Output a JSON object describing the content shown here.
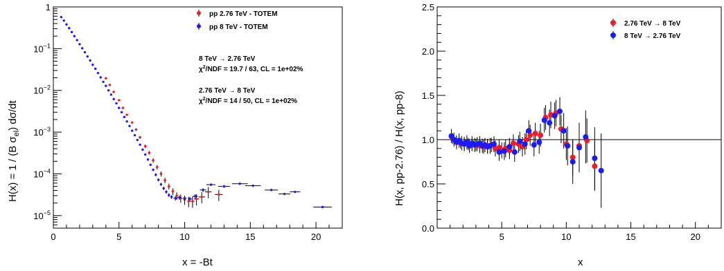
{
  "chart_data": [
    {
      "type": "scatter",
      "xlabel": "x = -Bt",
      "ylabel": "H(x) = 1 / (B σ",
      "ylabel_sub": "el",
      "ylabel_end": ")  dσ/dt",
      "xlim": [
        0,
        22
      ],
      "ylim": [
        5e-06,
        1
      ],
      "log_y": true,
      "x_ticks": [
        "0",
        "5",
        "10",
        "15",
        "20"
      ],
      "y_tick_mantissa": "10",
      "y_ticks": [
        {
          "value": 1,
          "label": "1",
          "exp": ""
        },
        {
          "value": 0.1,
          "label": "10",
          "exp": "−1"
        },
        {
          "value": 0.01,
          "label": "10",
          "exp": "−2"
        },
        {
          "value": 0.001,
          "label": "10",
          "exp": "−3"
        },
        {
          "value": 0.0001,
          "label": "10",
          "exp": "−4"
        },
        {
          "value": 1e-05,
          "label": "10",
          "exp": "−5"
        }
      ],
      "legend": [
        {
          "label": "pp 2.76 TeV - TOTEM",
          "color": "#e8202a"
        },
        {
          "label": "pp 8 TeV - TOTEM",
          "color": "#1c1cf0"
        }
      ],
      "annotations": {
        "a1_title": "8 TeV → 2.76 TeV",
        "a1_chi_pre": "χ",
        "a1_chi_sup": "2",
        "a1_chi_post": "/NDF = 19.7 / 63,  CL = 1e+02%",
        "a2_title": "2.76 TeV → 8 TeV",
        "a2_chi_pre": "χ",
        "a2_chi_sup": "2",
        "a2_chi_post": "/NDF =  14 / 50,  CL = 1e+02%"
      },
      "series": [
        {
          "name": "pp 2.76 TeV - TOTEM",
          "color": "#e8202a",
          "x": [
            4.0,
            4.3,
            4.6,
            5.0,
            5.3,
            5.6,
            6.0,
            6.3,
            6.6,
            7.0,
            7.3,
            7.6,
            7.9,
            8.2,
            8.5,
            8.8,
            9.1,
            9.4,
            9.7,
            10.0,
            10.3,
            10.6,
            10.9,
            11.3,
            11.8,
            12.6
          ],
          "y": [
            0.0195,
            0.0135,
            0.0092,
            0.0058,
            0.0038,
            0.0026,
            0.0017,
            0.00115,
            0.00075,
            0.00046,
            0.00032,
            0.00021,
            0.000145,
            0.0001,
            7e-05,
            5e-05,
            3.8e-05,
            3e-05,
            2.6e-05,
            2.4e-05,
            2.2e-05,
            2.2e-05,
            2.5e-05,
            2.8e-05,
            3.7e-05,
            3.2e-05
          ],
          "xerr": [
            0.1,
            0.1,
            0.1,
            0.1,
            0.1,
            0.1,
            0.1,
            0.1,
            0.1,
            0.1,
            0.1,
            0.1,
            0.1,
            0.1,
            0.1,
            0.1,
            0.1,
            0.1,
            0.1,
            0.1,
            0.1,
            0.15,
            0.2,
            0.25,
            0.25,
            0.3
          ],
          "yerr_frac": [
            0.04,
            0.04,
            0.05,
            0.05,
            0.05,
            0.06,
            0.06,
            0.07,
            0.08,
            0.1,
            0.1,
            0.12,
            0.12,
            0.14,
            0.15,
            0.16,
            0.18,
            0.2,
            0.22,
            0.25,
            0.28,
            0.3,
            0.3,
            0.3,
            0.3,
            0.3
          ]
        },
        {
          "name": "pp 8 TeV - TOTEM",
          "color": "#1c1cf0",
          "x": [
            0.6,
            0.8,
            1.0,
            1.2,
            1.4,
            1.6,
            1.8,
            2.0,
            2.2,
            2.4,
            2.6,
            2.8,
            3.0,
            3.2,
            3.4,
            3.6,
            3.8,
            4.0,
            4.2,
            4.4,
            4.6,
            4.8,
            5.0,
            5.2,
            5.4,
            5.6,
            5.8,
            6.0,
            6.2,
            6.4,
            6.6,
            6.8,
            7.0,
            7.2,
            7.4,
            7.6,
            7.8,
            8.0,
            8.2,
            8.4,
            8.6,
            8.8,
            9.0,
            9.3,
            9.6,
            10.0,
            10.4,
            10.8,
            11.4,
            12.0,
            13.0,
            14.2,
            15.2,
            16.6,
            17.6,
            18.4,
            20.5
          ],
          "y": [
            0.57,
            0.47,
            0.38,
            0.31,
            0.25,
            0.2,
            0.16,
            0.128,
            0.102,
            0.082,
            0.065,
            0.052,
            0.041,
            0.033,
            0.026,
            0.0205,
            0.016,
            0.0128,
            0.01,
            0.0079,
            0.0062,
            0.0049,
            0.0038,
            0.003,
            0.0023,
            0.0018,
            0.0014,
            0.00108,
            0.00084,
            0.00065,
            0.0005,
            0.00038,
            0.00029,
            0.00022,
            0.000165,
            0.000125,
            9.5e-05,
            7.2e-05,
            5.6e-05,
            4.5e-05,
            3.7e-05,
            3.1e-05,
            2.8e-05,
            2.6e-05,
            2.7e-05,
            2.6e-05,
            2.5e-05,
            2.9e-05,
            4.1e-05,
            5.5e-05,
            5e-05,
            5.8e-05,
            5.2e-05,
            4.1e-05,
            3.3e-05,
            3.7e-05,
            1.6e-05
          ],
          "xerr": [
            0.08,
            0.08,
            0.08,
            0.08,
            0.08,
            0.08,
            0.08,
            0.08,
            0.08,
            0.08,
            0.08,
            0.08,
            0.08,
            0.08,
            0.08,
            0.08,
            0.08,
            0.08,
            0.08,
            0.08,
            0.08,
            0.08,
            0.08,
            0.08,
            0.08,
            0.08,
            0.08,
            0.08,
            0.08,
            0.08,
            0.08,
            0.08,
            0.08,
            0.08,
            0.08,
            0.08,
            0.08,
            0.08,
            0.08,
            0.08,
            0.08,
            0.08,
            0.1,
            0.15,
            0.15,
            0.15,
            0.15,
            0.2,
            0.25,
            0.35,
            0.45,
            0.6,
            0.6,
            0.5,
            0.45,
            0.4,
            0.7
          ],
          "yerr_frac": [
            0.01,
            0.01,
            0.01,
            0.01,
            0.01,
            0.01,
            0.01,
            0.01,
            0.01,
            0.01,
            0.01,
            0.01,
            0.01,
            0.01,
            0.01,
            0.01,
            0.02,
            0.02,
            0.02,
            0.02,
            0.02,
            0.02,
            0.02,
            0.02,
            0.03,
            0.03,
            0.03,
            0.03,
            0.04,
            0.04,
            0.04,
            0.05,
            0.05,
            0.06,
            0.06,
            0.07,
            0.08,
            0.08,
            0.08,
            0.09,
            0.1,
            0.1,
            0.1,
            0.12,
            0.12,
            0.12,
            0.12,
            0.12,
            0.1,
            0.06,
            0.06,
            0.06,
            0.06,
            0.06,
            0.06,
            0.06,
            0.06
          ]
        }
      ]
    },
    {
      "type": "scatter",
      "xlabel": "x",
      "ylabel": "H(x, pp-2.76)  /  H(x, pp-8)",
      "xlim": [
        0,
        22
      ],
      "ylim": [
        0,
        2.5
      ],
      "x_ticks": [
        "5",
        "10",
        "15",
        "20"
      ],
      "y_ticks": [
        "0.0",
        "0.5",
        "1.0",
        "1.5",
        "2.0",
        "2.5"
      ],
      "reference_line": 1.0,
      "legend": [
        {
          "label": "2.76 TeV → 8 TeV",
          "color": "#e8202a"
        },
        {
          "label": "8 TeV → 2.76 TeV",
          "color": "#1c1cf0"
        }
      ],
      "series": [
        {
          "name": "2.76 TeV → 8 TeV",
          "color": "#e8202a",
          "x": [
            1.2,
            1.5,
            1.8,
            2.1,
            2.4,
            2.7,
            3.0,
            3.3,
            3.6,
            3.9,
            4.2,
            4.5,
            4.8,
            5.0,
            5.3,
            5.6,
            5.9,
            6.3,
            6.6,
            6.9,
            7.2,
            7.6,
            8.0,
            8.4,
            8.8,
            9.2,
            9.6,
            10.0,
            10.5,
            11.0,
            11.6,
            12.2
          ],
          "y": [
            1.01,
            0.98,
            0.96,
            0.95,
            0.95,
            0.94,
            0.94,
            0.93,
            0.92,
            0.93,
            0.94,
            0.9,
            0.91,
            0.88,
            0.9,
            0.88,
            0.96,
            0.95,
            0.92,
            1.0,
            1.05,
            1.07,
            1.05,
            1.25,
            1.28,
            1.3,
            1.12,
            0.95,
            0.8,
            0.93,
            0.99,
            0.7
          ],
          "yerr": [
            0.06,
            0.06,
            0.06,
            0.07,
            0.07,
            0.07,
            0.07,
            0.08,
            0.08,
            0.08,
            0.08,
            0.09,
            0.09,
            0.09,
            0.1,
            0.1,
            0.1,
            0.1,
            0.11,
            0.11,
            0.12,
            0.12,
            0.13,
            0.14,
            0.15,
            0.15,
            0.16,
            0.18,
            0.2,
            0.22,
            0.25,
            0.28
          ]
        },
        {
          "name": "8 TeV → 2.76 TeV",
          "color": "#1c1cf0",
          "x": [
            1.1,
            1.3,
            1.5,
            1.7,
            1.9,
            2.1,
            2.3,
            2.5,
            2.7,
            2.9,
            3.1,
            3.3,
            3.5,
            3.7,
            3.9,
            4.1,
            4.4,
            4.8,
            5.2,
            5.6,
            6.0,
            6.4,
            6.8,
            7.1,
            7.5,
            7.9,
            8.3,
            8.7,
            9.1,
            9.5,
            9.8,
            10.1,
            10.5,
            11.0,
            11.5,
            12.2,
            12.7
          ],
          "y": [
            1.04,
            1.0,
            0.97,
            0.99,
            0.96,
            0.95,
            0.97,
            0.93,
            0.96,
            0.94,
            0.95,
            0.96,
            0.93,
            0.94,
            0.92,
            0.93,
            0.95,
            0.86,
            0.87,
            0.92,
            0.86,
            0.98,
            0.95,
            1.1,
            0.94,
            0.97,
            1.22,
            1.19,
            1.27,
            1.32,
            1.1,
            0.93,
            0.75,
            0.91,
            1.03,
            0.79,
            0.65
          ],
          "yerr": [
            0.08,
            0.08,
            0.08,
            0.08,
            0.08,
            0.08,
            0.08,
            0.08,
            0.08,
            0.08,
            0.08,
            0.08,
            0.08,
            0.08,
            0.08,
            0.09,
            0.09,
            0.1,
            0.1,
            0.1,
            0.11,
            0.11,
            0.12,
            0.12,
            0.13,
            0.13,
            0.14,
            0.15,
            0.15,
            0.16,
            0.2,
            0.22,
            0.25,
            0.28,
            0.3,
            0.35,
            0.42
          ]
        }
      ]
    }
  ]
}
